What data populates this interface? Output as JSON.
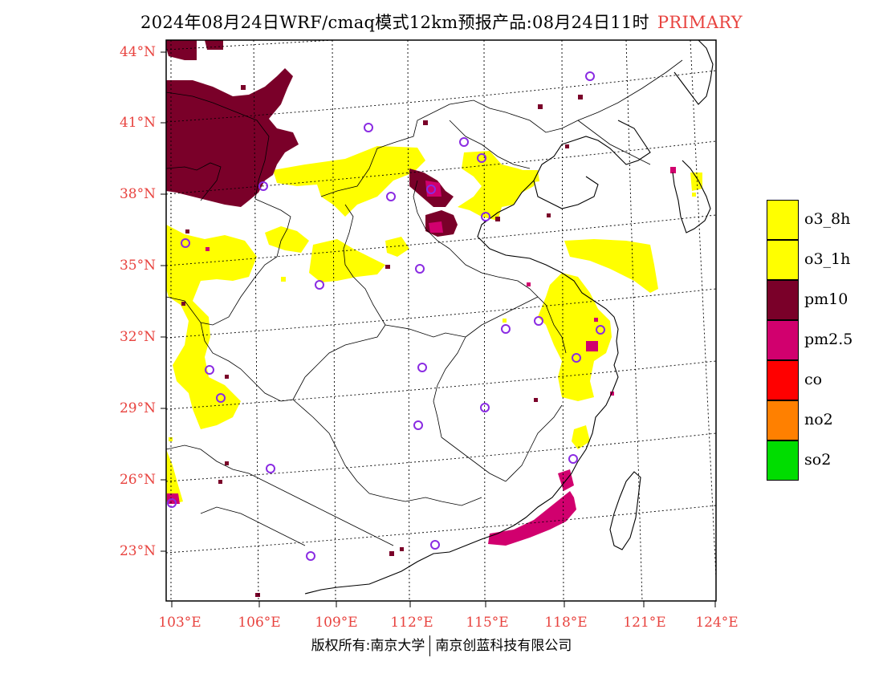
{
  "title": {
    "main": "2024年08月24日WRF/cmaq模式12km预报产品:08月24日11时",
    "tag": "PRIMARY"
  },
  "colors": {
    "accent_red": "#e8433f",
    "o3_8h": "#ffff00",
    "o3_1h": "#ffff00",
    "pm10": "#7a0029",
    "pm2_5": "#d1006e",
    "co": "#ff0000",
    "no2": "#ff8000",
    "so2": "#00dd00",
    "station_marker": "#8a2be2"
  },
  "lat_labels": [
    "44°N",
    "41°N",
    "38°N",
    "35°N",
    "32°N",
    "29°N",
    "26°N",
    "23°N"
  ],
  "lon_labels": [
    "103°E",
    "106°E",
    "109°E",
    "112°E",
    "115°E",
    "118°E",
    "121°E",
    "124°E"
  ],
  "legend": [
    {
      "label": "o3_8h",
      "color": "#ffff00"
    },
    {
      "label": "o3_1h",
      "color": "#ffff00"
    },
    {
      "label": "pm10",
      "color": "#7a0029"
    },
    {
      "label": "pm2.5",
      "color": "#d1006e"
    },
    {
      "label": "co",
      "color": "#ff0000"
    },
    {
      "label": "no2",
      "color": "#ff8000"
    },
    {
      "label": "so2",
      "color": "#00dd00"
    }
  ],
  "footer": {
    "left": "版权所有:南京大学",
    "right": "南京创蓝科技有限公司"
  }
}
